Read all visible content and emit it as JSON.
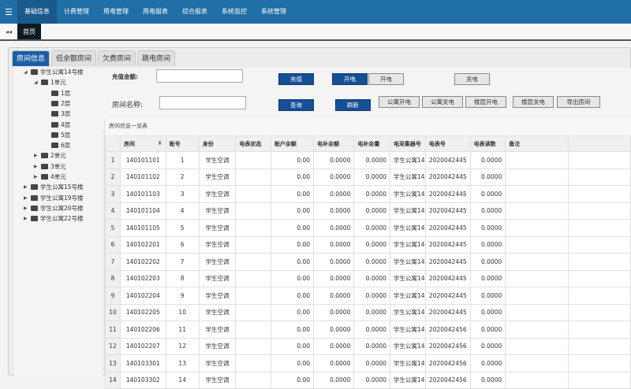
{
  "nav": {
    "items": [
      "基础信息",
      "计费管理",
      "用电管理",
      "用电报表",
      "综合报表",
      "系统监控",
      "系统管理"
    ],
    "active": 0
  },
  "tabbar": {
    "home": "首页"
  },
  "panel_tabs": [
    "房间信息",
    "低余额房间",
    "欠费房间",
    "跳电房间"
  ],
  "tree": [
    {
      "label": "学生公寓14号楼",
      "level": 0,
      "state": "open"
    },
    {
      "label": "1单元",
      "level": 1,
      "state": "open"
    },
    {
      "label": "1层",
      "level": 2,
      "state": "leaf"
    },
    {
      "label": "2层",
      "level": 2,
      "state": "leaf"
    },
    {
      "label": "3层",
      "level": 2,
      "state": "leaf"
    },
    {
      "label": "4层",
      "level": 2,
      "state": "leaf"
    },
    {
      "label": "5层",
      "level": 2,
      "state": "leaf"
    },
    {
      "label": "6层",
      "level": 2,
      "state": "leaf"
    },
    {
      "label": "2单元",
      "level": 1,
      "state": "closed"
    },
    {
      "label": "3单元",
      "level": 1,
      "state": "closed"
    },
    {
      "label": "4单元",
      "level": 1,
      "state": "closed"
    },
    {
      "label": "学生公寓15号楼",
      "level": 0,
      "state": "closed"
    },
    {
      "label": "学生公寓19号楼",
      "level": 0,
      "state": "closed"
    },
    {
      "label": "学生公寓20号楼",
      "level": 0,
      "state": "closed"
    },
    {
      "label": "学生公寓22号楼",
      "level": 0,
      "state": "closed"
    }
  ],
  "form": {
    "recharge_label": "充值金额:",
    "recharge_value": "",
    "room_label": "房间名称:",
    "room_value": "",
    "buttons": {
      "recharge": "充值",
      "power_on_blue": "开电",
      "power_on": "开电",
      "power_off": "关电",
      "query": "查询",
      "refresh": "刷新",
      "apt_on": "公寓开电",
      "apt_off": "公寓关电",
      "floor_on": "楼层开电",
      "floor_off": "楼层关电",
      "export": "导出房间"
    }
  },
  "table": {
    "title": "房间信息一览表",
    "columns": [
      "房间",
      "账号",
      "身份",
      "电表状态",
      "账户余额",
      "电补余额",
      "电补余量",
      "电采集器号",
      "电表号",
      "电表读数",
      "备注"
    ],
    "rows": [
      [
        "1",
        "140101101",
        "1",
        "学生空调",
        "",
        "0.00",
        "0.0000",
        "0.0000",
        "学生公寓14号",
        "2020042445",
        "0.0000",
        ""
      ],
      [
        "2",
        "140101102",
        "2",
        "学生空调",
        "",
        "0.00",
        "0.0000",
        "0.0000",
        "学生公寓14号",
        "2020042445",
        "0.0000",
        ""
      ],
      [
        "3",
        "140101103",
        "3",
        "学生空调",
        "",
        "0.00",
        "0.0000",
        "0.0000",
        "学生公寓14号",
        "2020042445",
        "0.0000",
        ""
      ],
      [
        "4",
        "140101104",
        "4",
        "学生空调",
        "",
        "0.00",
        "0.0000",
        "0.0000",
        "学生公寓14号",
        "2020042445",
        "0.0000",
        ""
      ],
      [
        "5",
        "140101105",
        "5",
        "学生空调",
        "",
        "0.00",
        "0.0000",
        "0.0000",
        "学生公寓14号",
        "2020042445",
        "0.0000",
        ""
      ],
      [
        "6",
        "140102201",
        "6",
        "学生空调",
        "",
        "0.00",
        "0.0000",
        "0.0000",
        "学生公寓14号",
        "2020042445",
        "0.0000",
        ""
      ],
      [
        "7",
        "140102202",
        "7",
        "学生空调",
        "",
        "0.00",
        "0.0000",
        "0.0000",
        "学生公寓14号",
        "2020042445",
        "0.0000",
        ""
      ],
      [
        "8",
        "140102203",
        "8",
        "学生空调",
        "",
        "0.00",
        "0.0000",
        "0.0000",
        "学生公寓14号",
        "2020042445",
        "0.0000",
        ""
      ],
      [
        "9",
        "140102204",
        "9",
        "学生空调",
        "",
        "0.00",
        "0.0000",
        "0.0000",
        "学生公寓14号",
        "2020042445",
        "0.0000",
        ""
      ],
      [
        "10",
        "140102205",
        "10",
        "学生空调",
        "",
        "0.00",
        "0.0000",
        "0.0000",
        "学生公寓14号",
        "2020042445",
        "0.0000",
        ""
      ],
      [
        "11",
        "140102206",
        "11",
        "学生空调",
        "",
        "0.00",
        "0.0000",
        "0.0000",
        "学生公寓14号",
        "2020042456",
        "0.0000",
        ""
      ],
      [
        "12",
        "140102207",
        "12",
        "学生空调",
        "",
        "0.00",
        "0.0000",
        "0.0000",
        "学生公寓14号",
        "2020042456",
        "0.0000",
        ""
      ],
      [
        "13",
        "140103301",
        "13",
        "学生空调",
        "",
        "0.00",
        "0.0000",
        "0.0000",
        "学生公寓14号",
        "2020042456",
        "0.0000",
        ""
      ],
      [
        "14",
        "140103302",
        "14",
        "学生空调",
        "",
        "0.00",
        "0.0000",
        "0.0000",
        "学生公寓14号",
        "2020042456",
        "0.0000",
        ""
      ]
    ]
  },
  "colors": {
    "nav": "#1f6ea6",
    "primary_button": "#174f94",
    "active_tab": "#1b5fa6"
  }
}
